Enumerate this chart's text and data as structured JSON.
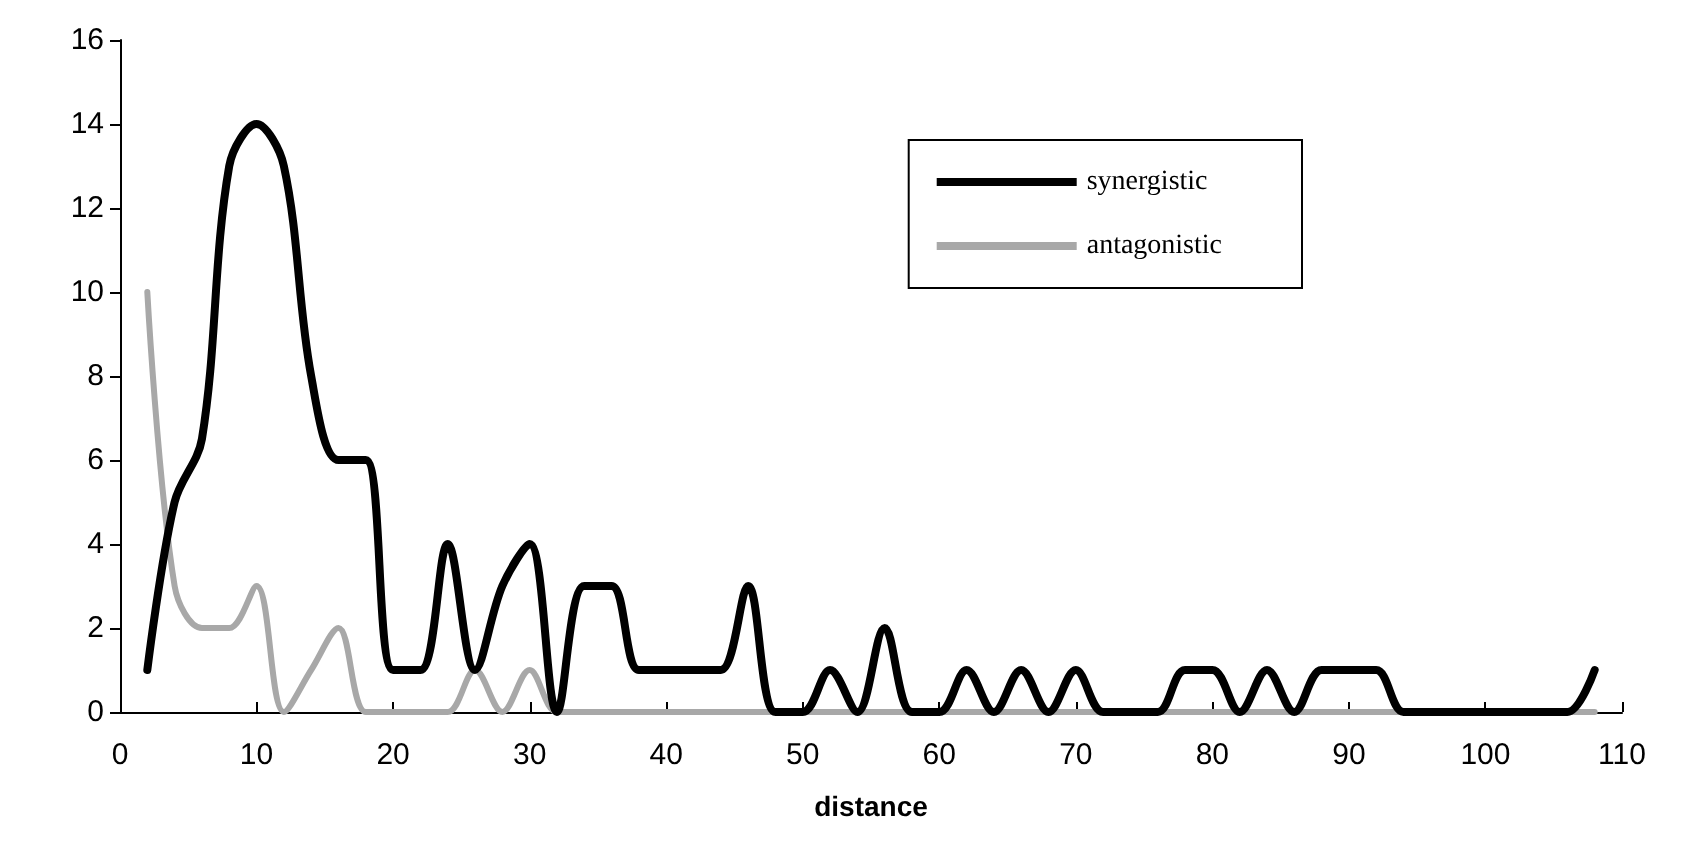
{
  "chart_data": {
    "type": "line",
    "xlabel": "distance",
    "x": [
      2,
      4,
      6,
      8,
      10,
      12,
      14,
      16,
      18,
      20,
      22,
      24,
      26,
      28,
      30,
      32,
      34,
      36,
      38,
      40,
      42,
      44,
      46,
      48,
      50,
      52,
      54,
      56,
      58,
      60,
      62,
      64,
      66,
      68,
      70,
      72,
      74,
      76,
      78,
      80,
      82,
      84,
      86,
      88,
      90,
      92,
      94,
      96,
      98,
      100,
      102,
      104,
      106,
      108
    ],
    "series": [
      {
        "name": "synergistic",
        "color": "#000000",
        "values": [
          1,
          5,
          6.5,
          13,
          14,
          13,
          8,
          6,
          6,
          1,
          1,
          4,
          1,
          3,
          4,
          0,
          3,
          3,
          1,
          1,
          1,
          1,
          3,
          0,
          0,
          1,
          0,
          2,
          0,
          0,
          1,
          0,
          1,
          0,
          1,
          0,
          0,
          0,
          1,
          1,
          0,
          1,
          0,
          1,
          1,
          1,
          0,
          0,
          0,
          0,
          0,
          0,
          0,
          1
        ]
      },
      {
        "name": "antagonistic",
        "color": "#a8a8a8",
        "values": [
          10,
          3,
          2,
          2,
          3,
          0,
          1,
          2,
          0,
          0,
          0,
          0,
          1,
          0,
          1,
          0,
          0,
          0,
          0,
          0,
          0,
          0,
          0,
          0,
          0,
          0,
          0,
          0,
          0,
          0,
          0,
          0,
          0,
          0,
          0,
          0,
          0,
          0,
          0,
          0,
          0,
          0,
          0,
          0,
          0,
          0,
          0,
          0,
          0,
          0,
          0,
          0,
          0,
          0
        ]
      }
    ],
    "xlim": [
      0,
      110
    ],
    "xticks": [
      0,
      10,
      20,
      30,
      40,
      50,
      60,
      70,
      80,
      90,
      100,
      110
    ],
    "ylim": [
      0,
      16
    ],
    "yticks": [
      0,
      2,
      4,
      6,
      8,
      10,
      12,
      14,
      16
    ],
    "grid": false,
    "legend": "top right",
    "marker": "none",
    "line_style": "solid"
  }
}
